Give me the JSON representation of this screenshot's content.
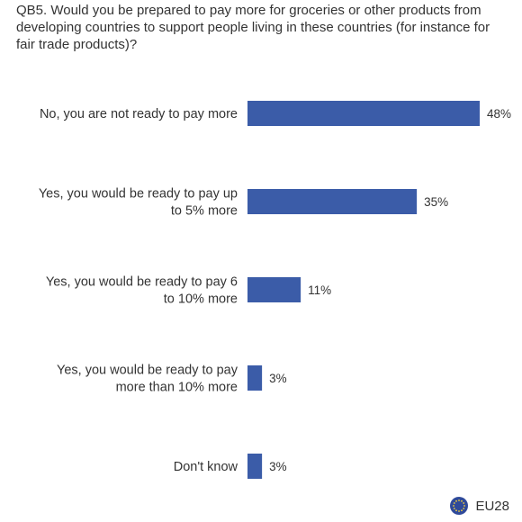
{
  "title": "QB5. Would you be prepared to pay more for groceries or other products from developing countries to support people living in these countries (for instance for fair trade products)?",
  "colors": {
    "bar": "#3b5ca8",
    "flag_bg": "#2f4a9a",
    "flag_star": "#f4d23c"
  },
  "legend": {
    "label": "EU28",
    "icon": "eu-flag-icon"
  },
  "chart_data": {
    "type": "bar",
    "orientation": "horizontal",
    "title": "QB5. Would you be prepared to pay more for groceries or other products from developing countries to support people living in these countries (for instance for fair trade products)?",
    "categories": [
      [
        "No, you are not ready to pay more"
      ],
      [
        "Yes, you would be ready to pay up",
        "to 5% more"
      ],
      [
        "Yes, you would be ready to pay 6",
        "to 10% more"
      ],
      [
        "Yes, you would be ready to pay",
        "more than 10% more"
      ],
      [
        "Don't know"
      ]
    ],
    "values": [
      48,
      35,
      11,
      3,
      3
    ],
    "value_labels": [
      "48%",
      "35%",
      "11%",
      "3%",
      "3%"
    ],
    "series": [
      {
        "name": "EU28",
        "values": [
          48,
          35,
          11,
          3,
          3
        ]
      }
    ],
    "xlim": [
      0,
      48
    ],
    "grid": false,
    "legend_position": "bottom-right"
  }
}
